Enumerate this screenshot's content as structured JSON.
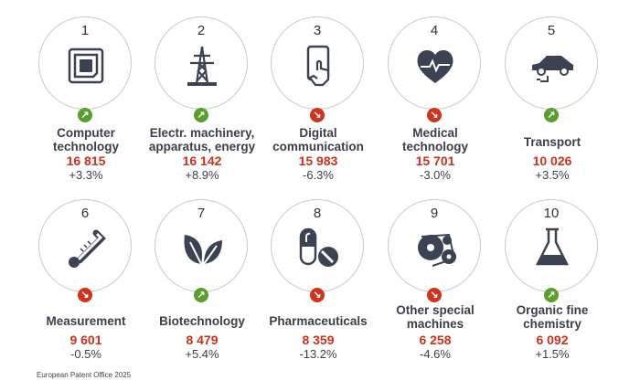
{
  "items": [
    {
      "rank": "1",
      "label": [
        "Computer",
        "technology"
      ],
      "value": "16 815",
      "change": "+3.3%",
      "trend": "up",
      "icon": "chip-icon"
    },
    {
      "rank": "2",
      "label": [
        "Electr. machinery,",
        "apparatus, energy"
      ],
      "value": "16 142",
      "change": "+8.9%",
      "trend": "up",
      "icon": "power-pylon-icon"
    },
    {
      "rank": "3",
      "label": [
        "Digital",
        "communication"
      ],
      "value": "15 983",
      "change": "-6.3%",
      "trend": "down",
      "icon": "smartphone-hand-icon"
    },
    {
      "rank": "4",
      "label": [
        "Medical",
        "technology"
      ],
      "value": "15 701",
      "change": "-3.0%",
      "trend": "down",
      "icon": "heart-pulse-icon"
    },
    {
      "rank": "5",
      "label": [
        "Transport"
      ],
      "value": "10 026",
      "change": "+3.5%",
      "trend": "up",
      "icon": "electric-car-icon"
    },
    {
      "rank": "6",
      "label": [
        "Measurement"
      ],
      "value": "9 601",
      "change": "-0.5%",
      "trend": "down",
      "icon": "thermometer-icon"
    },
    {
      "rank": "7",
      "label": [
        "Biotechnology"
      ],
      "value": "8 479",
      "change": "+5.4%",
      "trend": "up",
      "icon": "leaves-icon"
    },
    {
      "rank": "8",
      "label": [
        "Pharmaceuticals"
      ],
      "value": "8 359",
      "change": "-13.2%",
      "trend": "down",
      "icon": "pills-icon"
    },
    {
      "rank": "9",
      "label": [
        "Other special",
        "machines"
      ],
      "value": "6 258",
      "change": "-4.6%",
      "trend": "down",
      "icon": "belt-machine-icon"
    },
    {
      "rank": "10",
      "label": [
        "Organic fine",
        "chemistry"
      ],
      "value": "6 092",
      "change": "+1.5%",
      "trend": "up",
      "icon": "flask-icon"
    }
  ],
  "colors": {
    "up": "#5a9e2f",
    "down": "#d0341f",
    "icon": "#3b4252",
    "value": "#c8321e"
  },
  "footer": "European Patent Office 2025"
}
